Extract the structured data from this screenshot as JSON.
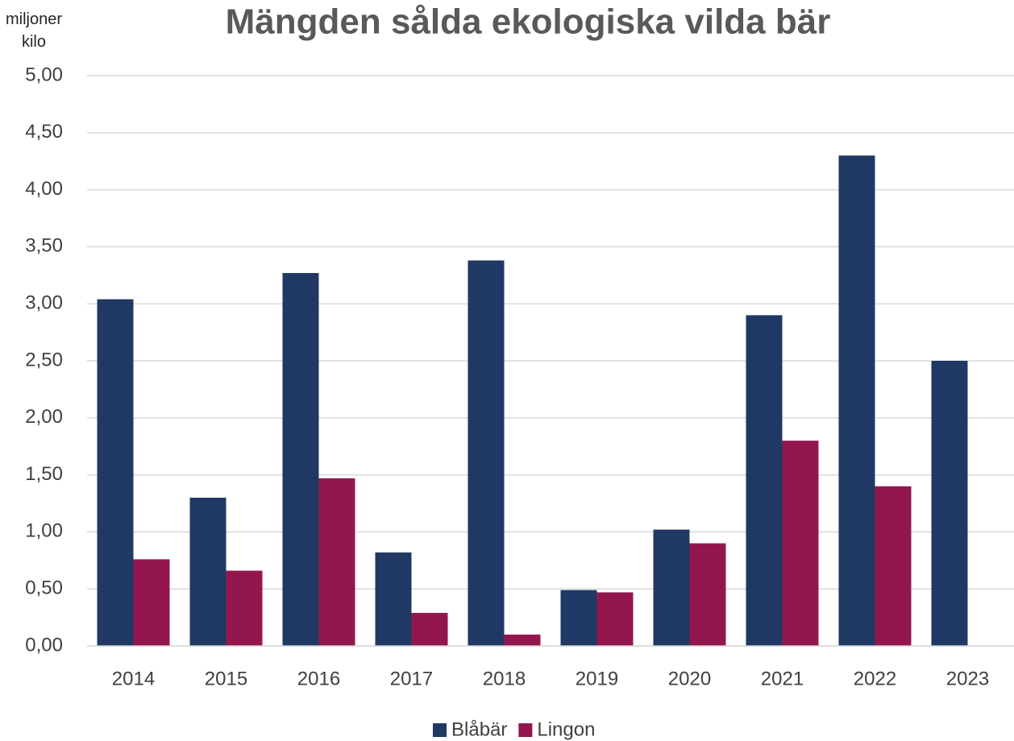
{
  "chart_data": {
    "type": "bar",
    "title": "Mängden sålda ekologiska vilda bär",
    "y_label": "miljoner kilo",
    "categories": [
      "2014",
      "2015",
      "2016",
      "2017",
      "2018",
      "2019",
      "2020",
      "2021",
      "2022",
      "2023"
    ],
    "series": [
      {
        "name": "Blåbär",
        "color": "#203864",
        "values": [
          3.04,
          1.3,
          3.27,
          0.82,
          3.38,
          0.49,
          1.02,
          2.9,
          4.3,
          2.5
        ]
      },
      {
        "name": "Lingon",
        "color": "#93174e",
        "values": [
          0.76,
          0.66,
          1.47,
          0.29,
          0.1,
          0.47,
          0.9,
          1.8,
          1.4,
          null
        ]
      }
    ],
    "ylim": [
      0,
      5
    ],
    "yticks": [
      {
        "value": 0,
        "label": "0,00"
      },
      {
        "value": 0.5,
        "label": "0,50"
      },
      {
        "value": 1,
        "label": "1,00"
      },
      {
        "value": 1.5,
        "label": "1,50"
      },
      {
        "value": 2,
        "label": "2,00"
      },
      {
        "value": 2.5,
        "label": "2,50"
      },
      {
        "value": 3,
        "label": "3,00"
      },
      {
        "value": 3.5,
        "label": "3,50"
      },
      {
        "value": 4,
        "label": "4,00"
      },
      {
        "value": 4.5,
        "label": "4,50"
      },
      {
        "value": 5,
        "label": "5,00"
      }
    ],
    "grid": true,
    "legend": "bottom"
  }
}
